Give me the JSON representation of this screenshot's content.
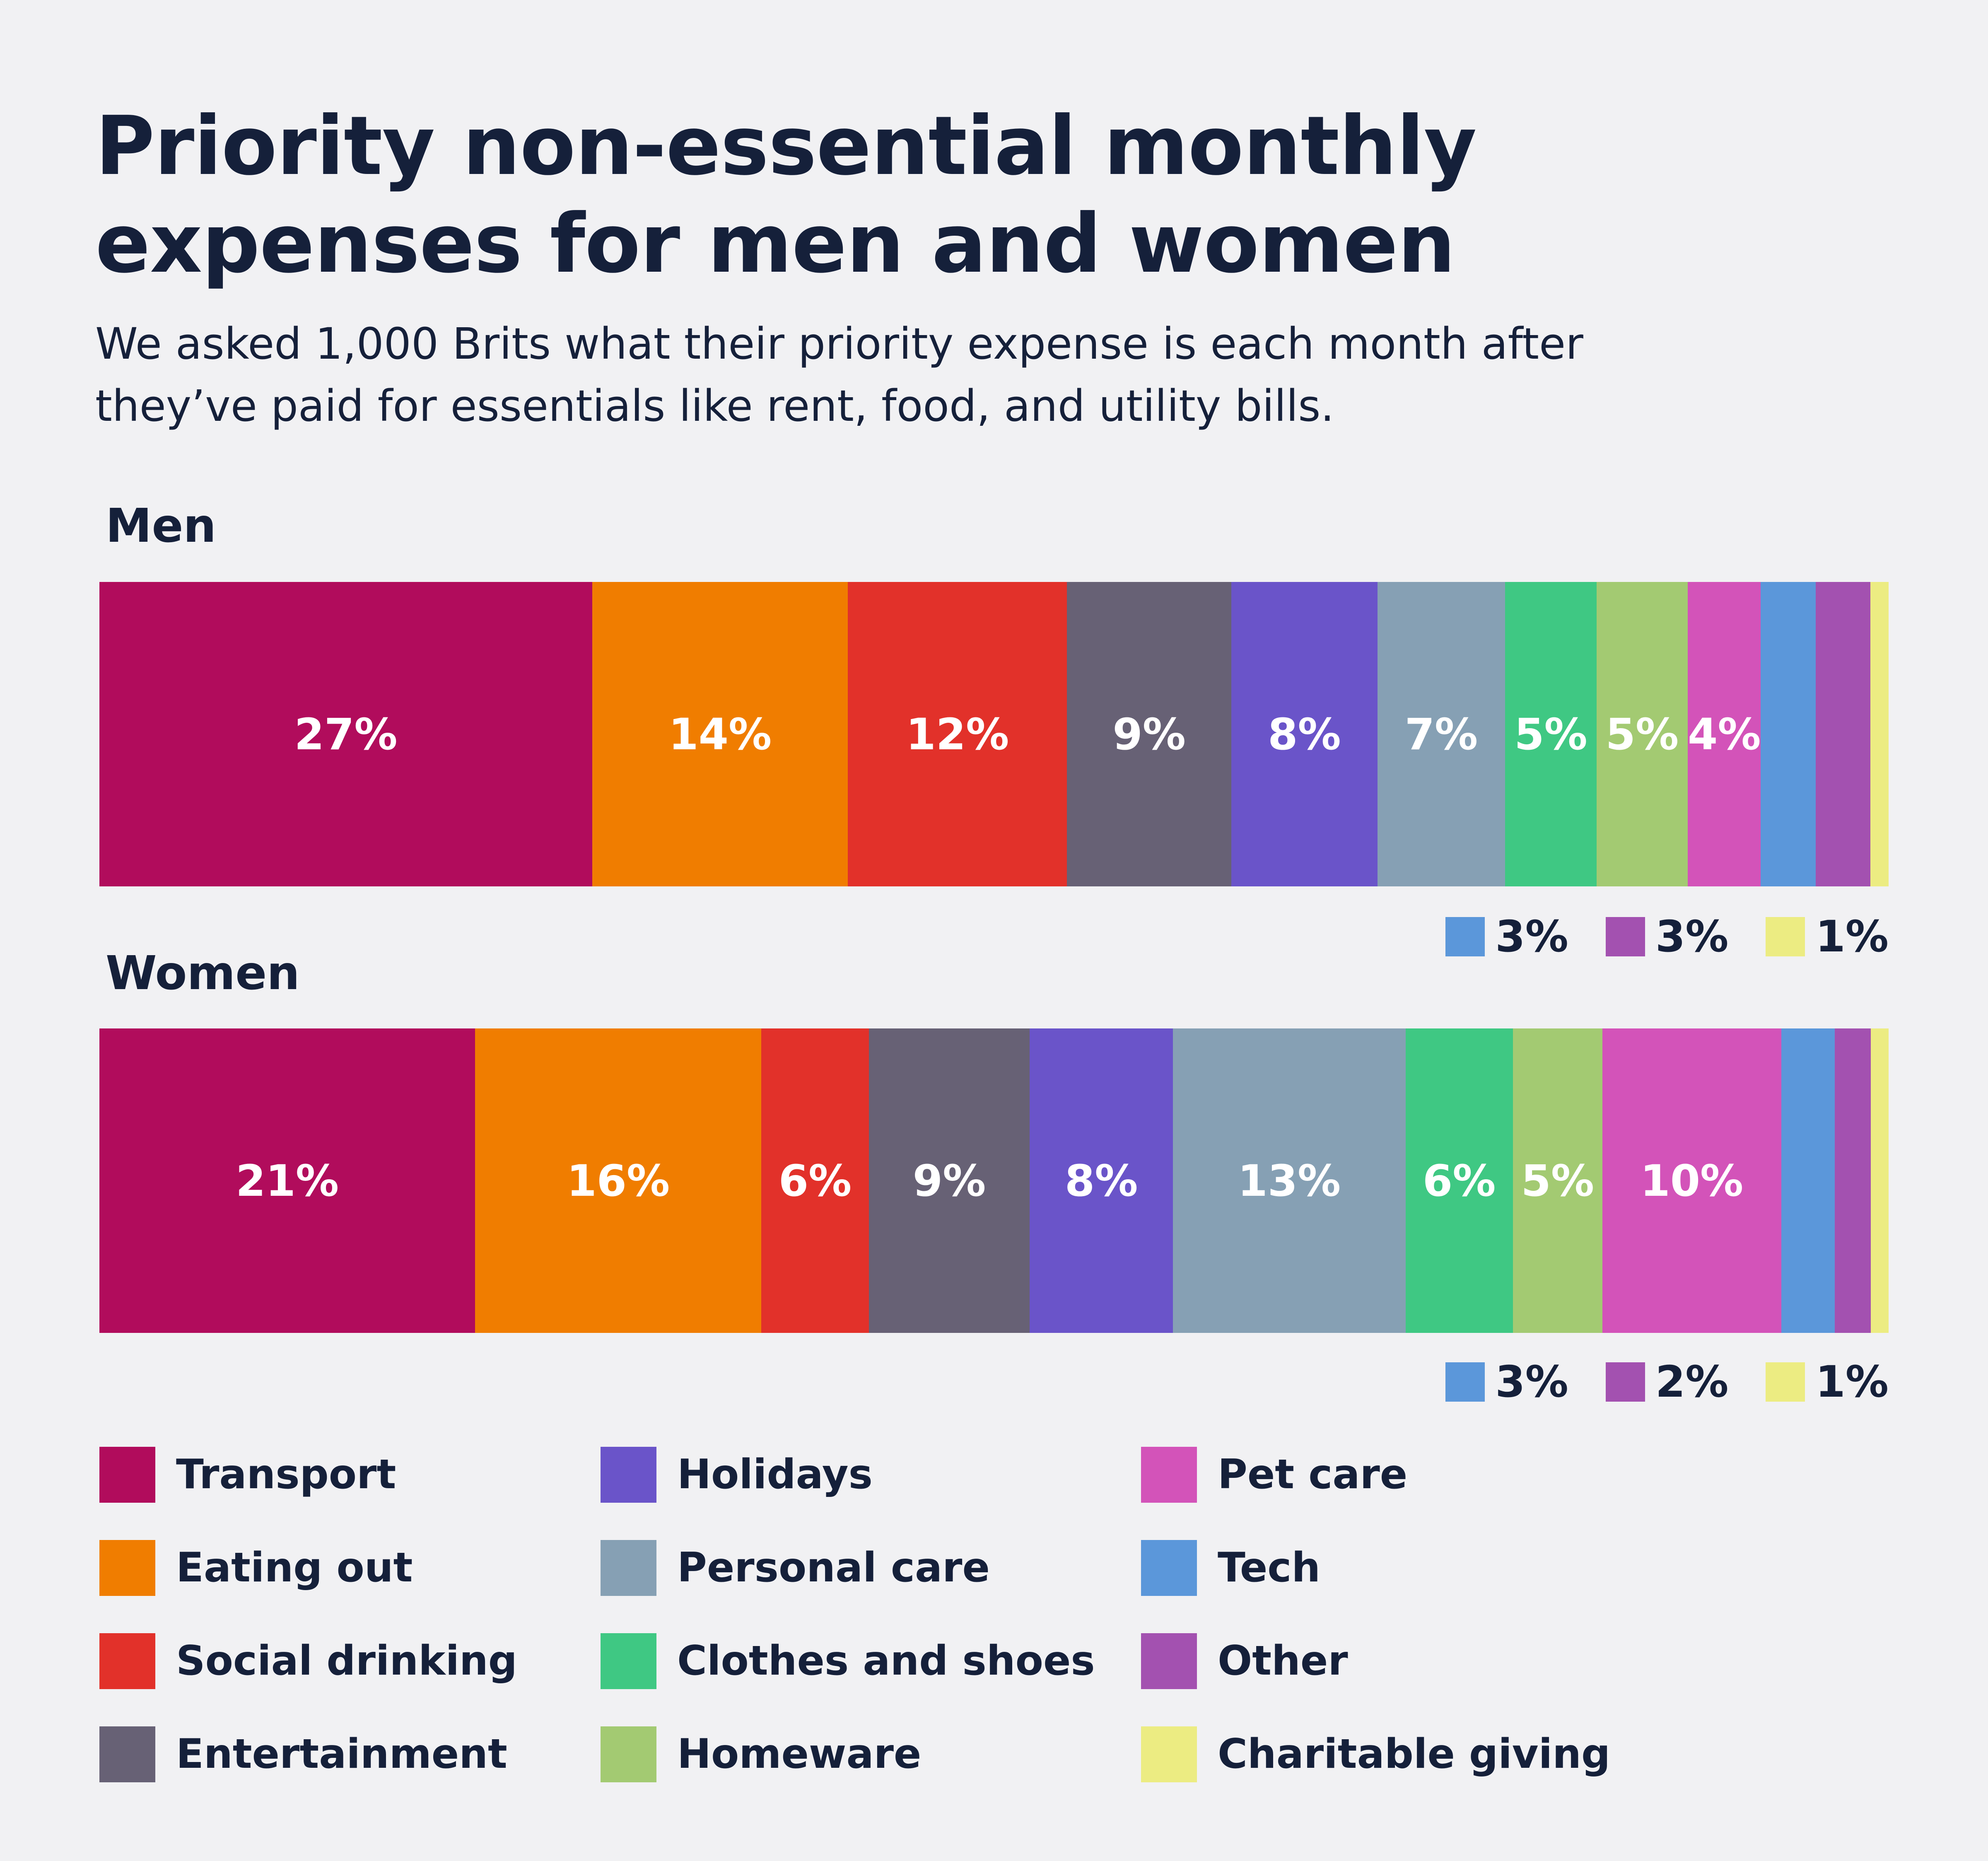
{
  "title": "Priority non-essential monthly expenses for men and women",
  "subtitle": "We asked 1,000 Brits what their priority expense is each month after they’ve paid for essentials like rent, food, and utility bills.",
  "chart_data": {
    "type": "bar",
    "orientation": "horizontal-stacked",
    "title": "Priority non-essential monthly expenses for men and women",
    "categories": [
      "Transport",
      "Eating out",
      "Social drinking",
      "Entertainment",
      "Holidays",
      "Personal care",
      "Clothes and shoes",
      "Homeware",
      "Pet care",
      "Tech",
      "Other",
      "Charitable giving"
    ],
    "colors": [
      "#b10c5c",
      "#f07d00",
      "#e2312a",
      "#676175",
      "#6a54c9",
      "#86a0b4",
      "#3fc883",
      "#a3ca72",
      "#d353b9",
      "#5b97da",
      "#a351b0",
      "#ecec82"
    ],
    "series": [
      {
        "name": "Men",
        "values": [
          27,
          14,
          12,
          9,
          8,
          7,
          5,
          5,
          4,
          3,
          3,
          1
        ],
        "labels": [
          "27%",
          "14%",
          "12%",
          "9%",
          "8%",
          "7%",
          "5%",
          "5%",
          "4%",
          "",
          "",
          ""
        ]
      },
      {
        "name": "Women",
        "values": [
          21,
          16,
          6,
          9,
          8,
          13,
          6,
          5,
          10,
          3,
          2,
          1
        ],
        "labels": [
          "21%",
          "16%",
          "6%",
          "9%",
          "8%",
          "13%",
          "6%",
          "5%",
          "10%",
          "",
          "",
          ""
        ]
      }
    ],
    "small_segment_callouts": [
      {
        "series": "Men",
        "items": [
          {
            "category": "Tech",
            "label": "3%"
          },
          {
            "category": "Other",
            "label": "3%"
          },
          {
            "category": "Charitable giving",
            "label": "1%"
          }
        ]
      },
      {
        "series": "Women",
        "items": [
          {
            "category": "Tech",
            "label": "3%"
          },
          {
            "category": "Other",
            "label": "2%"
          },
          {
            "category": "Charitable giving",
            "label": "1%"
          }
        ]
      }
    ],
    "legend_position": "bottom"
  }
}
